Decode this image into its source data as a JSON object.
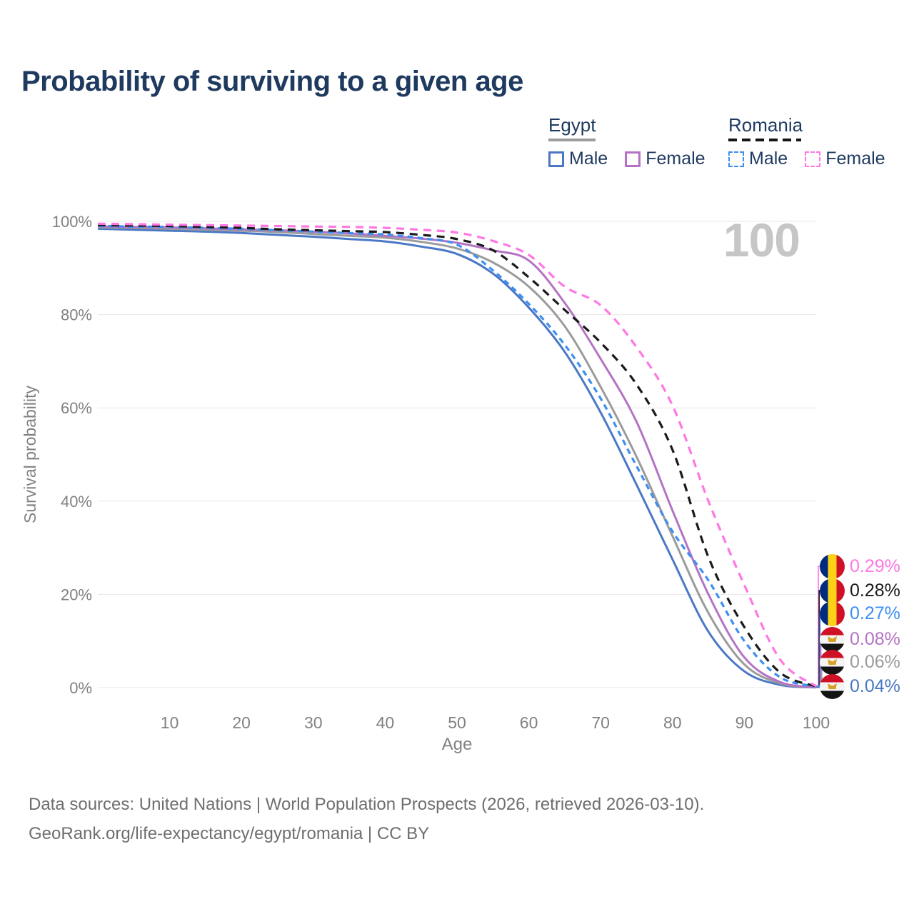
{
  "title": "Probability of surviving to a given age",
  "watermark": "100",
  "legend": {
    "groups": [
      {
        "label": "Egypt",
        "line_style": "solid",
        "underline_color": "#9b9b9b",
        "items": [
          {
            "label": "Male",
            "color": "#4a78c6",
            "dashed": false
          },
          {
            "label": "Female",
            "color": "#b473c4",
            "dashed": false
          }
        ]
      },
      {
        "label": "Romania",
        "line_style": "dashed",
        "underline_color": "#141414",
        "items": [
          {
            "label": "Male",
            "color": "#3d8ff0",
            "dashed": true
          },
          {
            "label": "Female",
            "color": "#ff77e3",
            "dashed": true
          }
        ]
      }
    ]
  },
  "chart_data": {
    "type": "line",
    "title": "Probability of surviving to a given age",
    "xlabel": "Age",
    "ylabel": "Survival probability",
    "xlim": [
      0,
      100
    ],
    "ylim": [
      0,
      100
    ],
    "x_ticks": [
      10,
      20,
      30,
      40,
      50,
      60,
      70,
      80,
      90,
      100
    ],
    "y_ticks": [
      0,
      20,
      40,
      60,
      80,
      100
    ],
    "y_tick_suffix": "%",
    "grid": "horizontal",
    "legend_position": "top-right",
    "highlight_age": "100",
    "x": [
      0,
      5,
      10,
      15,
      20,
      25,
      30,
      35,
      40,
      45,
      50,
      55,
      60,
      65,
      70,
      75,
      80,
      85,
      90,
      95,
      100
    ],
    "series": [
      {
        "name": "Egypt Male",
        "country": "Egypt",
        "sex": "Male",
        "flag": "egypt",
        "color": "#4a78c6",
        "dashed": false,
        "end_label": "0.04%",
        "values": [
          98.4,
          98.2,
          98.0,
          97.8,
          97.5,
          97.1,
          96.7,
          96.2,
          95.7,
          94.6,
          93.0,
          88.8,
          81.5,
          72.0,
          59.0,
          43.5,
          27.5,
          12.0,
          3.5,
          0.6,
          0.04
        ]
      },
      {
        "name": "Egypt Both sexes",
        "country": "Egypt",
        "sex": "Both sexes",
        "flag": "egypt",
        "color": "#9b9b9b",
        "dashed": false,
        "end_label": "0.06%",
        "values": [
          98.7,
          98.6,
          98.4,
          98.2,
          98.0,
          97.7,
          97.3,
          96.9,
          96.5,
          95.6,
          94.2,
          91.2,
          86.0,
          77.5,
          64.5,
          49.5,
          32.5,
          16.0,
          5.0,
          0.9,
          0.06
        ]
      },
      {
        "name": "Egypt Female",
        "country": "Egypt",
        "sex": "Female",
        "flag": "egypt",
        "color": "#b473c4",
        "dashed": false,
        "end_label": "0.08%",
        "values": [
          98.9,
          98.8,
          98.7,
          98.5,
          98.3,
          98.1,
          97.8,
          97.4,
          96.9,
          96.3,
          95.4,
          93.8,
          91.6,
          82.5,
          70.5,
          57.0,
          38.0,
          20.0,
          6.5,
          1.2,
          0.08
        ]
      },
      {
        "name": "Romania Male",
        "country": "Romania",
        "sex": "Male",
        "flag": "romania",
        "color": "#3d8ff0",
        "dashed": true,
        "end_label": "0.27%",
        "values": [
          99.0,
          98.9,
          98.8,
          98.6,
          98.4,
          98.1,
          97.8,
          97.5,
          97.2,
          96.4,
          95.0,
          89.5,
          82.3,
          73.5,
          62.0,
          47.5,
          33.5,
          23.0,
          10.0,
          2.2,
          0.27
        ]
      },
      {
        "name": "Romania Both sexes",
        "country": "Romania",
        "sex": "Both sexes",
        "flag": "romania",
        "color": "#1a1a1a",
        "dashed": true,
        "end_label": "0.28%",
        "values": [
          99.2,
          99.1,
          99.0,
          98.8,
          98.6,
          98.3,
          98.1,
          97.9,
          97.7,
          97.1,
          96.2,
          93.8,
          88.0,
          81.0,
          74.0,
          65.0,
          51.0,
          28.0,
          13.0,
          3.2,
          0.28
        ]
      },
      {
        "name": "Romania Female",
        "country": "Romania",
        "sex": "Female",
        "flag": "romania",
        "color": "#ff77e3",
        "dashed": true,
        "end_label": "0.29%",
        "values": [
          99.5,
          99.4,
          99.3,
          99.2,
          99.1,
          99.0,
          98.9,
          98.8,
          98.6,
          98.2,
          97.6,
          95.8,
          92.8,
          86.0,
          82.0,
          73.0,
          60.5,
          40.0,
          22.0,
          6.0,
          0.29
        ]
      }
    ]
  },
  "footer": {
    "line1": "Data sources: United Nations | World Population Prospects (2026, retrieved 2026-03-10).",
    "line2": "GeoRank.org/life-expectancy/egypt/romania | CC BY"
  }
}
